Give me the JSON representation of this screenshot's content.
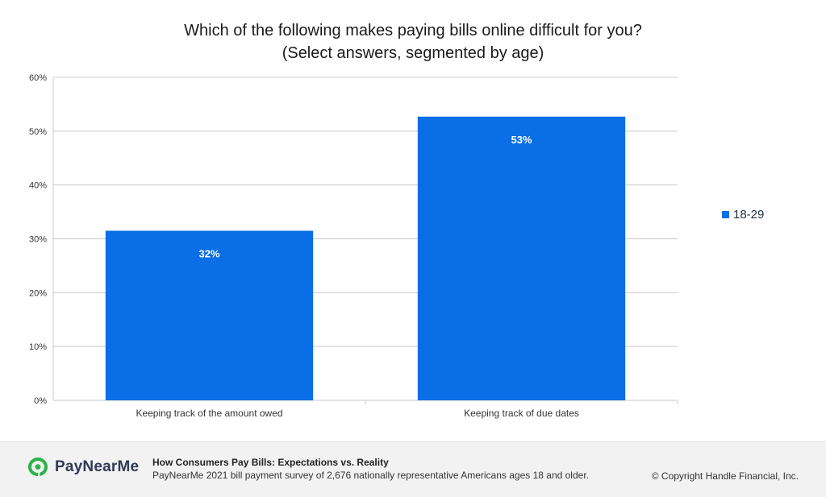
{
  "chart_data": {
    "type": "bar",
    "title": "Which of the following makes paying bills online difficult for you?",
    "subtitle": "(Select answers, segmented by age)",
    "categories": [
      "Keeping track of the amount owed",
      "Keeping track of due dates"
    ],
    "series": [
      {
        "name": "18-29",
        "values": [
          31.5,
          52.7
        ],
        "data_labels": [
          "32%",
          "53%"
        ],
        "color": "#0a6ee6"
      }
    ],
    "ylim": [
      0,
      60
    ],
    "yticks": [
      0,
      10,
      20,
      30,
      40,
      50,
      60
    ],
    "ytick_labels": [
      "0%",
      "10%",
      "20%",
      "30%",
      "40%",
      "50%",
      "60%"
    ],
    "grid": true,
    "legend_position": "right",
    "xlabel": "",
    "ylabel": ""
  },
  "colors": {
    "bar": "#0a6ee6",
    "grid": "#c8c8c8",
    "logo": "#2bb34a"
  },
  "legend": {
    "label": "18-29"
  },
  "footer": {
    "brand": "PayNearMe",
    "logo_icon": "paynearme-pin-logo-icon",
    "report_title": "How Consumers Pay Bills: Expectations vs. Reality",
    "report_subtitle": "PayNearMe 2021 bill payment survey of 2,676 nationally representative Americans ages 18 and older.",
    "copyright": "© Copyright Handle Financial, Inc."
  }
}
